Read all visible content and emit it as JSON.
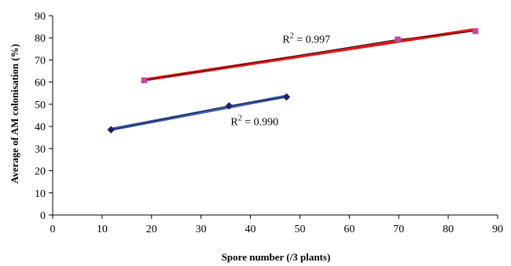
{
  "chart_data": {
    "type": "scatter",
    "xlabel": "Spore number (/3 plants)",
    "ylabel": "Average of AM colonisation (%)",
    "xlim": [
      0,
      90
    ],
    "ylim": [
      0,
      90
    ],
    "xticks": [
      "0",
      "10",
      "20",
      "30",
      "40",
      "50",
      "60",
      "70",
      "80",
      "90"
    ],
    "yticks": [
      "0",
      "10",
      "20",
      "30",
      "40",
      "50",
      "60",
      "70",
      "80",
      "90"
    ],
    "grid": false,
    "legend": "none",
    "series": [
      {
        "marker": "diamond",
        "color": "#1f1f6b",
        "trend_color": "#3b5bb0",
        "x": [
          11.8,
          35.7,
          47.3
        ],
        "y": [
          38.5,
          49.3,
          53.3
        ],
        "annotation": {
          "base": "R",
          "sup": "2",
          "rest": " = 0.990",
          "x": 36,
          "y": 40.5
        }
      },
      {
        "marker": "square",
        "color": "#c04aa0",
        "trend_color": "#e01515",
        "x": [
          18.5,
          69.8,
          85.5
        ],
        "y": [
          60.8,
          79.3,
          83.0
        ],
        "annotation": {
          "base": "R",
          "sup": "2",
          "rest": " = 0.997",
          "x": 46.5,
          "y": 77.8
        }
      }
    ]
  }
}
